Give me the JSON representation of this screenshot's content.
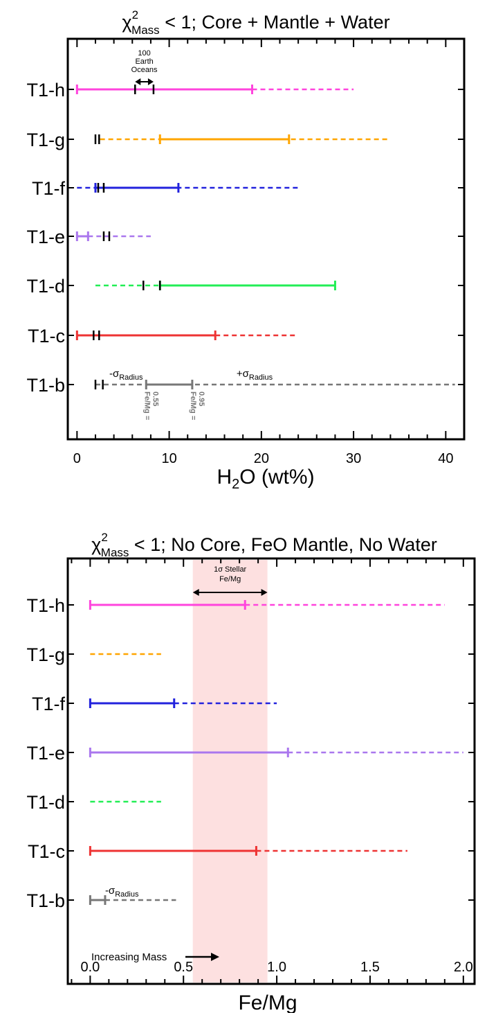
{
  "chart_data": [
    {
      "type": "range",
      "title": "χ²Mass < 1; Core + Mantle + Water",
      "title_parts": {
        "chi": "χ",
        "sup": "2",
        "sub": "Mass",
        "rest": " < 1; Core + Mantle + Water"
      },
      "xlabel": "H2O (wt%)",
      "xlabel_parts": {
        "a": "H",
        "sub": "2",
        "b": "O (wt%)"
      },
      "xlim": [
        -1,
        42
      ],
      "xticks": [
        0,
        10,
        20,
        30,
        40
      ],
      "xtick_labels": [
        "0",
        "10",
        "20",
        "30",
        "40"
      ],
      "ylabel": "",
      "legend": "none",
      "series": [
        {
          "name": "T1-h",
          "color": "#ff44dd",
          "solid": [
            0,
            19
          ],
          "dashed": [
            19,
            30
          ],
          "black_ticks": [
            6.3,
            8.3
          ]
        },
        {
          "name": "T1-g",
          "color": "#ffa500",
          "solid": [
            9,
            23
          ],
          "dashed": [
            2.5,
            34
          ],
          "black_ticks": [
            2.0,
            2.4
          ]
        },
        {
          "name": "T1-f",
          "color": "#2222dd",
          "solid": [
            2,
            11
          ],
          "dashed": [
            0,
            24
          ],
          "black_ticks": [
            2.3,
            2.9
          ]
        },
        {
          "name": "T1-e",
          "color": "#aa77ee",
          "solid": [
            0,
            1.2
          ],
          "dashed": [
            1.2,
            8
          ],
          "black_ticks": [
            2.9,
            3.5
          ]
        },
        {
          "name": "T1-d",
          "color": "#22ee55",
          "solid": [
            9,
            28
          ],
          "dashed": [
            2,
            9
          ],
          "black_ticks": [
            7.2,
            9.0
          ]
        },
        {
          "name": "T1-c",
          "color": "#ee3333",
          "solid": [
            0,
            15
          ],
          "dashed": [
            15,
            24
          ],
          "black_ticks": [
            1.8,
            2.4
          ]
        },
        {
          "name": "T1-b",
          "color": "#777777",
          "solid": [
            7.5,
            12.5
          ],
          "dashed": [
            2.0,
            41
          ],
          "black_ticks": [
            2.0,
            2.8
          ]
        }
      ],
      "annotations": {
        "oceans": {
          "lines": [
            "100",
            "Earth",
            "Oceans"
          ],
          "range": [
            6.3,
            8.3
          ]
        },
        "minus_sigma": {
          "prefix": "-σ",
          "sub": "Radius"
        },
        "plus_sigma": {
          "prefix": "+σ",
          "sub": "Radius"
        },
        "femg_low": {
          "lines": [
            "Fe/Mg =",
            "0.55"
          ],
          "x": 7.5
        },
        "femg_high": {
          "lines": [
            "Fe/Mg =",
            "0.95"
          ],
          "x": 12.5
        }
      }
    },
    {
      "type": "range",
      "title": "χ²Mass < 1; No Core, FeO Mantle, No Water",
      "title_parts": {
        "chi": "χ",
        "sup": "2",
        "sub": "Mass",
        "rest": " < 1; No Core, FeO Mantle, No Water"
      },
      "xlabel": "Fe/Mg",
      "xlim": [
        -0.12,
        2.06
      ],
      "xticks": [
        0,
        0.5,
        1.0,
        1.5,
        2.0
      ],
      "xtick_labels": [
        "0.0",
        "0.5",
        "1.0",
        "1.5",
        "2.0"
      ],
      "ylabel": "",
      "legend": "none",
      "stellar_band": {
        "range": [
          0.55,
          0.95
        ],
        "color": "#fde0e0",
        "label": [
          "1σ Stellar",
          "Fe/Mg"
        ]
      },
      "series": [
        {
          "name": "T1-h",
          "color": "#ff44dd",
          "solid": [
            0,
            0.83
          ],
          "dashed": [
            0.83,
            1.9
          ]
        },
        {
          "name": "T1-g",
          "color": "#ffa500",
          "solid": null,
          "dashed": [
            0,
            0.38
          ]
        },
        {
          "name": "T1-f",
          "color": "#2222dd",
          "solid": [
            0,
            0.45
          ],
          "dashed": [
            0.45,
            1.0
          ]
        },
        {
          "name": "T1-e",
          "color": "#aa77ee",
          "solid": [
            0,
            1.06
          ],
          "dashed": [
            1.06,
            2.0
          ]
        },
        {
          "name": "T1-d",
          "color": "#22ee55",
          "solid": null,
          "dashed": [
            0,
            0.38
          ]
        },
        {
          "name": "T1-c",
          "color": "#ee3333",
          "solid": [
            0,
            0.89
          ],
          "dashed": [
            0.89,
            1.7
          ]
        },
        {
          "name": "T1-b",
          "color": "#777777",
          "solid": [
            0,
            0.08
          ],
          "dashed": [
            0.08,
            0.46
          ]
        }
      ],
      "annotations": {
        "minus_sigma": {
          "prefix": "-σ",
          "sub": "Radius"
        },
        "increasing_mass": "Increasing Mass"
      }
    }
  ]
}
